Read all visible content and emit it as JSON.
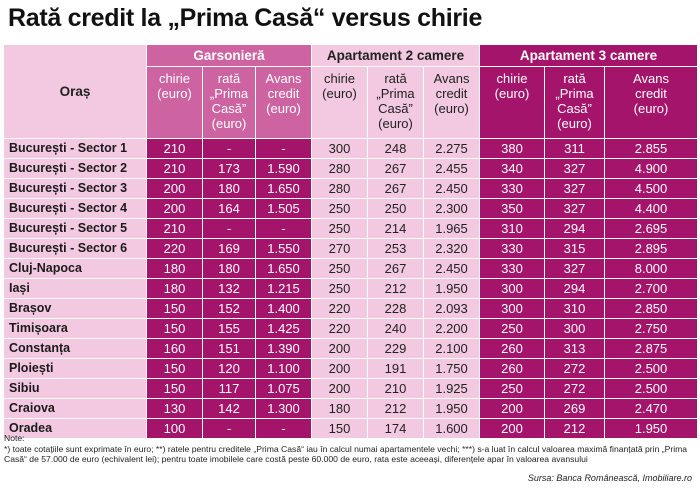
{
  "title": "Rată credit la „Prima Casă“ versus chirie",
  "table": {
    "oras_header": "Oraș",
    "groups": [
      "Garsonieră",
      "Apartament 2 camere",
      "Apartament 3 camere"
    ],
    "subheaders": [
      [
        "chirie",
        "(euro)"
      ],
      [
        "rată",
        "„Prima",
        "Casă”",
        "(euro)"
      ],
      [
        "Avans",
        "credit",
        "(euro)"
      ]
    ],
    "rows": [
      [
        "București - Sector 1",
        "210",
        "-",
        "-",
        "300",
        "248",
        "2.275",
        "380",
        "311",
        "2.855"
      ],
      [
        "București - Sector 2",
        "210",
        "173",
        "1.590",
        "280",
        "267",
        "2.455",
        "340",
        "327",
        "4.900"
      ],
      [
        "București - Sector 3",
        "200",
        "180",
        "1.650",
        "280",
        "267",
        "2.450",
        "330",
        "327",
        "4.500"
      ],
      [
        "București - Sector 4",
        "200",
        "164",
        "1.505",
        "250",
        "250",
        "2.300",
        "350",
        "327",
        "4.400"
      ],
      [
        "București - Sector 5",
        "210",
        "-",
        "-",
        "250",
        "214",
        "1.965",
        "310",
        "294",
        "2.695"
      ],
      [
        "București - Sector 6",
        "220",
        "169",
        "1.550",
        "270",
        "253",
        "2.320",
        "330",
        "315",
        "2.895"
      ],
      [
        "Cluj-Napoca",
        "180",
        "180",
        "1.650",
        "250",
        "267",
        "2.450",
        "330",
        "327",
        "8.000"
      ],
      [
        "Iași",
        "180",
        "132",
        "1.215",
        "250",
        "212",
        "1.950",
        "300",
        "294",
        "2.700"
      ],
      [
        "Brașov",
        "150",
        "152",
        "1.400",
        "220",
        "228",
        "2.093",
        "300",
        "310",
        "2.850"
      ],
      [
        "Timișoara",
        "150",
        "155",
        "1.425",
        "220",
        "240",
        "2.200",
        "250",
        "300",
        "2.750"
      ],
      [
        "Constanța",
        "160",
        "151",
        "1.390",
        "200",
        "229",
        "2.100",
        "260",
        "313",
        "2.875"
      ],
      [
        "Ploiești",
        "150",
        "120",
        "1.100",
        "200",
        "191",
        "1.750",
        "260",
        "272",
        "2.500"
      ],
      [
        "Sibiu",
        "150",
        "117",
        "1.075",
        "200",
        "210",
        "1.925",
        "250",
        "272",
        "2.500"
      ],
      [
        "Craiova",
        "130",
        "142",
        "1.300",
        "180",
        "212",
        "1.950",
        "200",
        "269",
        "2.470"
      ],
      [
        "Oradea",
        "100",
        "-",
        "-",
        "150",
        "174",
        "1.600",
        "200",
        "212",
        "1.950"
      ]
    ]
  },
  "notes": {
    "label": "Note:",
    "text": "*) toate cotațiile sunt exprimate în euro; **) ratele pentru creditele „Prima Casă“ iau în calcul numai apartamentele vechi; ***) s-a luat în calcul valoarea maximă finanțată prin „Prima Casă“ de 57.000 de euro (echivalent lei); pentru toate imobilele care costă peste 60.000 de euro, rata este aceeași, diferențele apar în valoarea avansului"
  },
  "source": "Sursa: Banca Românească, Imobiliare.ro"
}
